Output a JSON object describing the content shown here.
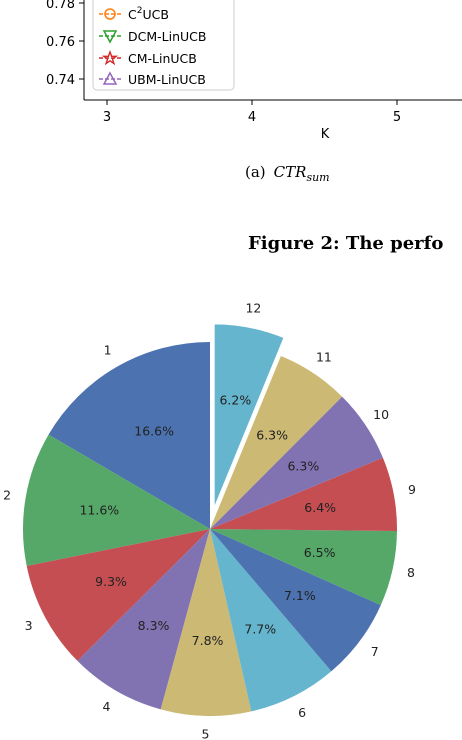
{
  "top_chart": {
    "type": "line",
    "y_ticks": [
      "0.78",
      "0.76",
      "0.74"
    ],
    "x_ticks": [
      "3",
      "4",
      "5"
    ],
    "xlabel": "K",
    "legend": [
      {
        "label": "C",
        "sup": "2",
        "label_rest": "UCB",
        "color": "#ff7f0e",
        "marker": "circle"
      },
      {
        "label": "DCM-LinUCB",
        "color": "#2ca02c",
        "marker": "triangle-down"
      },
      {
        "label": "CM-LinUCB",
        "color": "#d62728",
        "marker": "star"
      },
      {
        "label": "UBM-LinUCB",
        "color": "#9467bd",
        "marker": "triangle-up"
      }
    ]
  },
  "caption": {
    "prefix": "(a)",
    "math": "CTR",
    "sub": "sum"
  },
  "figure_title": "Figure 2: The perfo",
  "chart_data": {
    "type": "pie",
    "categories": [
      "1",
      "2",
      "3",
      "4",
      "5",
      "6",
      "7",
      "8",
      "9",
      "10",
      "11",
      "12"
    ],
    "values": [
      16.6,
      11.6,
      9.3,
      8.3,
      7.8,
      7.7,
      7.1,
      6.5,
      6.4,
      6.3,
      6.3,
      6.2
    ],
    "labels_pct": [
      "16.6%",
      "11.6%",
      "9.3%",
      "8.3%",
      "7.8%",
      "7.7%",
      "7.1%",
      "6.5%",
      "6.4%",
      "6.3%",
      "6.3%",
      "6.2%"
    ],
    "colors": [
      "#4c72b0",
      "#55a868",
      "#c44e52",
      "#8172b2",
      "#ccb974",
      "#64b5cd",
      "#4c72b0",
      "#55a868",
      "#c44e52",
      "#8172b2",
      "#ccb974",
      "#64b5cd"
    ],
    "exploded": [
      "12"
    ],
    "direction": "counterclockwise",
    "start": "12 o'clock"
  }
}
